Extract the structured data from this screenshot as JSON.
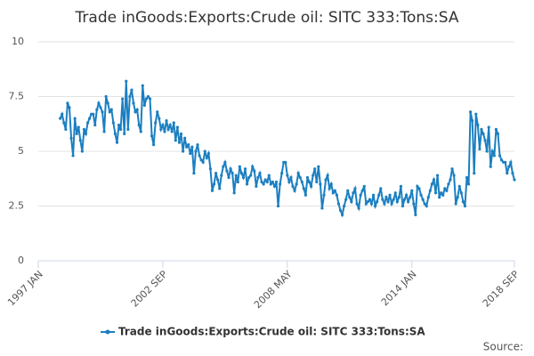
{
  "chart_data": {
    "type": "line",
    "title": "Trade inGoods:Exports:Crude oil: SITC 333:Tons:SA",
    "source": "Source:",
    "categories": [
      "1997 JAN",
      null,
      null,
      null,
      null,
      null,
      null,
      null,
      null,
      null,
      null,
      null,
      null,
      null,
      null,
      null,
      null,
      null,
      null,
      null,
      null,
      null,
      null,
      null,
      null,
      null,
      null,
      null,
      null,
      null,
      null,
      null,
      null,
      null,
      null,
      null,
      null,
      null,
      null,
      null,
      null,
      null,
      null,
      null,
      null,
      null,
      null,
      null,
      null,
      null,
      null,
      null,
      null,
      null,
      null,
      null,
      null,
      null,
      null,
      null,
      null,
      null,
      null,
      null,
      null,
      null,
      null,
      null,
      "2002 SEP",
      null,
      null,
      null,
      null,
      null,
      null,
      null,
      null,
      null,
      null,
      null,
      null,
      null,
      null,
      null,
      null,
      null,
      null,
      null,
      null,
      null,
      null,
      null,
      null,
      null,
      null,
      null,
      null,
      null,
      null,
      null,
      null,
      null,
      null,
      null,
      null,
      null,
      null,
      null,
      null,
      null,
      null,
      null,
      null,
      null,
      null,
      null,
      null,
      null,
      null,
      null,
      null,
      null,
      null,
      null,
      null,
      null,
      null,
      null,
      null,
      null,
      null,
      null,
      null,
      null,
      null,
      null,
      "2008 MAY",
      null,
      null,
      null,
      null,
      null,
      null,
      null,
      null,
      null,
      null,
      null,
      null,
      null,
      null,
      null,
      null,
      null,
      null,
      null,
      null,
      null,
      null,
      null,
      null,
      null,
      null,
      null,
      null,
      null,
      null,
      null,
      null,
      null,
      null,
      null,
      null,
      null,
      null,
      null,
      null,
      null,
      null,
      null,
      null,
      null,
      null,
      null,
      null,
      null,
      null,
      null,
      null,
      null,
      null,
      null,
      null,
      null,
      null,
      null,
      null,
      null,
      null,
      null,
      null,
      null,
      null,
      null,
      "2014 JAN",
      null,
      null,
      null,
      null,
      null,
      null,
      null,
      null,
      null,
      null,
      null,
      null,
      null,
      null,
      null,
      null,
      null,
      null,
      null,
      null,
      null,
      null,
      null,
      null,
      null,
      null,
      null,
      null,
      null,
      null,
      null,
      null,
      null,
      null,
      null,
      null,
      null,
      null,
      null,
      null,
      null,
      null,
      null,
      null,
      null,
      null,
      null,
      null,
      null,
      null,
      null,
      null,
      null,
      null,
      null,
      "2018 SEP"
    ],
    "xticks_at": [
      0,
      68,
      136,
      204,
      260
    ],
    "series": [
      {
        "name": "Trade inGoods:Exports:Crude oil: SITC 333:Tons:SA",
        "color": "#1b7fc1",
        "values": [
          null,
          null,
          null,
          null,
          null,
          null,
          null,
          null,
          null,
          null,
          null,
          null,
          6.5,
          6.7,
          6.3,
          6.0,
          7.2,
          7.0,
          5.6,
          4.8,
          6.5,
          5.8,
          6.1,
          5.5,
          5.0,
          6.0,
          5.8,
          6.3,
          6.5,
          6.7,
          6.7,
          6.2,
          6.9,
          7.2,
          7.0,
          6.8,
          5.9,
          7.5,
          7.2,
          6.8,
          6.9,
          6.3,
          5.8,
          5.4,
          6.2,
          6.0,
          7.4,
          5.8,
          8.2,
          6.0,
          7.5,
          7.8,
          7.2,
          6.8,
          6.9,
          6.2,
          5.9,
          8.0,
          7.1,
          7.4,
          7.5,
          7.4,
          5.7,
          5.3,
          6.3,
          6.8,
          6.5,
          6.0,
          6.2,
          5.9,
          6.4,
          6.0,
          6.2,
          5.9,
          6.3,
          5.5,
          6.1,
          5.4,
          5.8,
          5.0,
          5.6,
          5.2,
          5.3,
          4.9,
          5.2,
          4.0,
          5.0,
          5.3,
          4.8,
          4.6,
          4.5,
          5.0,
          4.7,
          4.9,
          4.2,
          3.2,
          3.5,
          4.0,
          3.7,
          3.3,
          3.9,
          4.3,
          4.5,
          4.1,
          3.8,
          4.2,
          4.0,
          3.1,
          3.9,
          3.6,
          4.3,
          4.0,
          3.8,
          4.2,
          3.5,
          3.8,
          3.9,
          4.3,
          4.1,
          3.4,
          3.8,
          4.0,
          3.6,
          3.5,
          3.7,
          3.6,
          3.9,
          3.5,
          3.6,
          3.4,
          3.6,
          2.5,
          3.5,
          4.0,
          4.5,
          4.5,
          3.9,
          3.6,
          3.8,
          3.4,
          3.2,
          3.5,
          4.0,
          3.8,
          3.6,
          3.3,
          3.0,
          3.8,
          3.6,
          3.4,
          3.9,
          4.2,
          3.6,
          4.3,
          3.5,
          2.4,
          3.0,
          3.7,
          3.9,
          3.3,
          3.5,
          3.1,
          3.2,
          3.0,
          2.6,
          2.3,
          2.1,
          2.5,
          2.8,
          3.2,
          2.9,
          2.7,
          3.1,
          3.3,
          2.6,
          2.4,
          3.0,
          3.2,
          3.4,
          2.6,
          2.7,
          2.8,
          2.6,
          3.0,
          2.5,
          2.7,
          3.0,
          3.3,
          2.8,
          2.6,
          2.9,
          2.7,
          3.0,
          2.6,
          2.8,
          3.1,
          2.7,
          2.9,
          3.4,
          2.5,
          2.8,
          3.0,
          2.7,
          2.9,
          3.2,
          2.6,
          2.1,
          3.4,
          3.3,
          3.0,
          2.8,
          2.6,
          2.5,
          2.9,
          3.2,
          3.5,
          3.7,
          3.1,
          3.9,
          2.9,
          3.1,
          3.0,
          3.3,
          3.2,
          3.5,
          3.7,
          4.2,
          3.9,
          2.6,
          2.9,
          3.4,
          3.1,
          2.7,
          2.5,
          3.8,
          3.5,
          6.8,
          6.4,
          4.0,
          6.7,
          6.2,
          5.1,
          6.0,
          5.8,
          5.5,
          5.0,
          6.1,
          4.3,
          5.0,
          4.8,
          6.0,
          5.8,
          4.8,
          4.6,
          4.5,
          4.5,
          4.0,
          4.3,
          4.5,
          4.0,
          3.7
        ]
      }
    ],
    "ylim": [
      0,
      10
    ],
    "yticks": [
      0,
      2.5,
      5,
      7.5,
      10
    ],
    "grid": true,
    "legend": "bottom"
  }
}
